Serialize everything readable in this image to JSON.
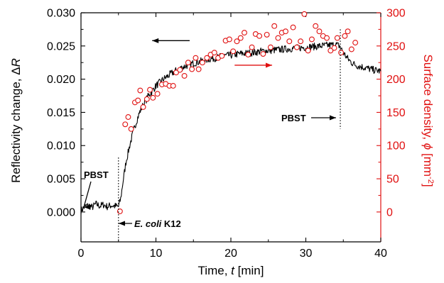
{
  "chart_data": {
    "type": "line",
    "xlabel_prefix": "Time, ",
    "xlabel_var": "t",
    "xlabel_unit": " [min]",
    "ylabel_left_prefix": "Reflectivity change, Δ",
    "ylabel_left_var": "R",
    "ylabel_right_prefix": "Surface density, ",
    "ylabel_right_var": "ϕ",
    "ylabel_right_unit": " [mm",
    "ylabel_right_exp": "-2",
    "ylabel_right_close": "]",
    "xlim": [
      0,
      40
    ],
    "ylim_left": [
      -0.0045,
      0.03
    ],
    "ylim_right": [
      -45,
      300
    ],
    "x_ticks": [
      "0",
      "10",
      "20",
      "30",
      "40"
    ],
    "y_left_ticks": [
      "0.000",
      "0.005",
      "0.010",
      "0.015",
      "0.020",
      "0.025",
      "0.030"
    ],
    "y_right_ticks": [
      "0",
      "50",
      "100",
      "150",
      "200",
      "250",
      "300"
    ],
    "colors": {
      "left_axis": "#000000",
      "right_axis": "#e01010",
      "reflectivity_line": "#000000",
      "surface_markers": "#e01010"
    },
    "annotations": {
      "pbst_1": "PBST",
      "ecoli_italic": "E. coli",
      "ecoli_rest": " K12",
      "pbst_2": "PBST"
    },
    "event_lines_x": [
      5.0,
      34.6
    ],
    "series": [
      {
        "axis": "left",
        "style": "line",
        "x": [
          0,
          0.5,
          1,
          1.5,
          2,
          2.5,
          3,
          3.5,
          4,
          4.5,
          5,
          5.3,
          5.6,
          6,
          6.5,
          7,
          7.5,
          8,
          8.5,
          9,
          9.5,
          10,
          11,
          12,
          13,
          14,
          15,
          16,
          17,
          18,
          19,
          20,
          21,
          22,
          23,
          24,
          25,
          26,
          27,
          28,
          29,
          30,
          31,
          32,
          33,
          34,
          34.5,
          35,
          35.5,
          36,
          36.5,
          37,
          38,
          39,
          40
        ],
        "values": [
          0.0002,
          0.0008,
          0.001,
          0.0007,
          0.0012,
          0.0009,
          0.0011,
          0.0008,
          0.001,
          0.0009,
          0.0008,
          0.002,
          0.0045,
          0.0075,
          0.01,
          0.0122,
          0.014,
          0.0155,
          0.0165,
          0.0175,
          0.0182,
          0.019,
          0.02,
          0.0208,
          0.0215,
          0.022,
          0.0224,
          0.0227,
          0.023,
          0.0232,
          0.0235,
          0.0236,
          0.0238,
          0.0239,
          0.024,
          0.0242,
          0.0243,
          0.0244,
          0.0245,
          0.0246,
          0.0247,
          0.0248,
          0.0249,
          0.025,
          0.0251,
          0.0252,
          0.025,
          0.024,
          0.0232,
          0.0226,
          0.0222,
          0.022,
          0.0217,
          0.0214,
          0.0212
        ]
      },
      {
        "axis": "right",
        "style": "markers",
        "x": [
          5.2,
          5.9,
          6.3,
          6.7,
          7.2,
          7.6,
          7.9,
          8.3,
          8.8,
          9.2,
          9.6,
          10.2,
          10.8,
          11.3,
          11.8,
          12.3,
          12.7,
          13.2,
          13.8,
          14.3,
          14.8,
          15.3,
          15.7,
          16.2,
          16.8,
          17.3,
          17.8,
          18.3,
          18.8,
          19.3,
          19.8,
          20.3,
          20.8,
          21.3,
          21.8,
          22.3,
          22.8,
          23.3,
          23.8,
          24.3,
          24.8,
          25.3,
          25.8,
          26.3,
          26.8,
          27.3,
          27.8,
          28.3,
          28.8,
          29.3,
          29.8,
          30.3,
          30.8,
          31.3,
          31.8,
          32.3,
          32.8,
          33.3,
          33.8,
          34.2,
          34.7,
          35.2,
          35.6,
          36.1,
          36.6
        ],
        "values": [
          1,
          132,
          143,
          125,
          165,
          168,
          183,
          158,
          170,
          184,
          172,
          178,
          192,
          193,
          190,
          190,
          210,
          214,
          205,
          225,
          215,
          232,
          215,
          225,
          232,
          237,
          240,
          232,
          235,
          258,
          260,
          242,
          257,
          262,
          270,
          237,
          248,
          268,
          265,
          238,
          267,
          248,
          280,
          262,
          270,
          272,
          257,
          278,
          248,
          257,
          298,
          243,
          260,
          280,
          272,
          265,
          262,
          243,
          247,
          262,
          240,
          265,
          272,
          245,
          255
        ]
      },
      {
        "axis": "right",
        "style": "arrow",
        "name_hint": "right-axis indicator",
        "x": [
          20.5,
          25.5
        ],
        "values": [
          221,
          221
        ]
      },
      {
        "axis": "left",
        "style": "arrow",
        "name_hint": "left-axis indicator",
        "x": [
          9.5,
          14.5
        ],
        "values": [
          0.0258,
          0.0258
        ]
      }
    ]
  }
}
